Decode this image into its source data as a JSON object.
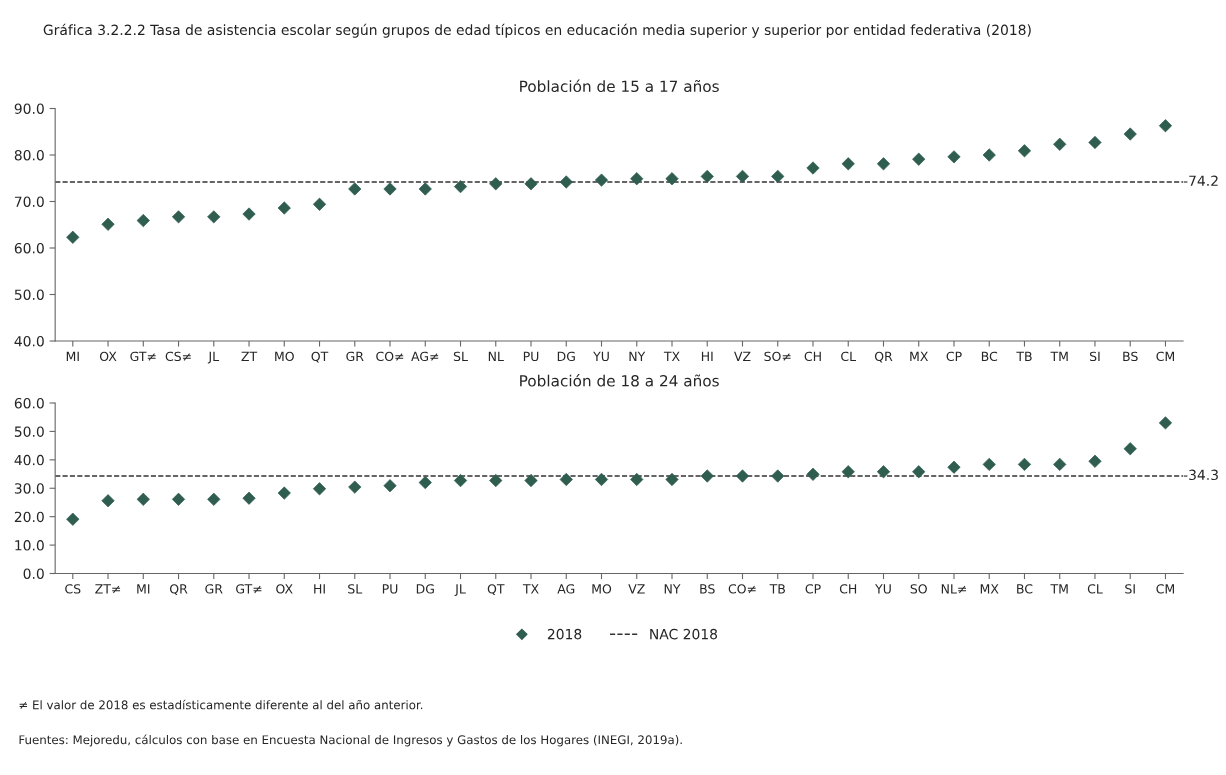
{
  "chart_data": [
    {
      "type": "scatter",
      "title": "Gráfica 3.2.2.2 Tasa de asistencia escolar según grupos de edad típicos en educación media superior y superior por entidad federativa (2018)",
      "subtitle": "Población de 15 a 17 años",
      "categories": [
        "MI",
        "OX",
        "GT≠",
        "CS≠",
        "JL",
        "ZT",
        "MO",
        "QT",
        "GR",
        "CO≠",
        "AG≠",
        "SL",
        "NL",
        "PU",
        "DG",
        "YU",
        "NY",
        "TX",
        "HI",
        "VZ",
        "SO≠",
        "CH",
        "CL",
        "QR",
        "MX",
        "CP",
        "BC",
        "TB",
        "TM",
        "SI",
        "BS",
        "CM"
      ],
      "series": [
        {
          "name": "2018",
          "color": "#2f5d4f",
          "values": [
            62.3,
            65.1,
            65.9,
            66.7,
            66.7,
            67.3,
            68.6,
            69.4,
            72.7,
            72.7,
            72.7,
            73.2,
            73.8,
            73.8,
            74.2,
            74.6,
            74.9,
            74.9,
            75.4,
            75.4,
            75.4,
            77.2,
            78.1,
            78.1,
            79.1,
            79.6,
            80.0,
            80.9,
            82.3,
            82.7,
            84.5,
            86.3
          ]
        }
      ],
      "ref_lines": [
        {
          "axis": "y",
          "value": 74.2,
          "label": "NAC 2018",
          "color": "#333333",
          "line_style": "dashed"
        }
      ],
      "annotations": [
        "-74.2"
      ],
      "ylim": [
        40,
        90
      ],
      "yticks": [
        {
          "value": 40,
          "label": "40.0"
        },
        {
          "value": 50,
          "label": "50.0"
        },
        {
          "value": 60,
          "label": "60.0"
        },
        {
          "value": 70,
          "label": "70.0"
        },
        {
          "value": 80,
          "label": "80.0"
        },
        {
          "value": 90,
          "label": "90.0"
        }
      ],
      "marker": "diamond",
      "grid": false,
      "legend": "bottom"
    },
    {
      "type": "scatter",
      "subtitle": "Población de 18 a 24 años",
      "categories": [
        "CS",
        "ZT≠",
        "MI",
        "QR",
        "GR",
        "GT≠",
        "OX",
        "HI",
        "SL",
        "PU",
        "DG",
        "JL",
        "QT",
        "TX",
        "AG",
        "MO",
        "VZ",
        "NY",
        "BS",
        "CO≠",
        "TB",
        "CP",
        "CH",
        "YU",
        "SO",
        "NL≠",
        "MX",
        "BC",
        "TM",
        "CL",
        "SI",
        "CM"
      ],
      "series": [
        {
          "name": "2018",
          "color": "#2f5d4f",
          "values": [
            19.1,
            25.6,
            26.1,
            26.1,
            26.1,
            26.5,
            28.3,
            29.8,
            30.4,
            30.9,
            32.0,
            32.7,
            32.7,
            32.7,
            33.1,
            33.1,
            33.1,
            33.1,
            34.3,
            34.3,
            34.3,
            34.9,
            35.8,
            35.8,
            35.8,
            37.4,
            38.4,
            38.4,
            38.4,
            39.5,
            43.9,
            53.0
          ]
        }
      ],
      "ref_lines": [
        {
          "axis": "y",
          "value": 34.3,
          "color": "#333333",
          "line_style": "dashed"
        }
      ],
      "ylim": [
        0,
        60
      ],
      "yticks": [
        {
          "value": 0,
          "label": "0.0"
        },
        {
          "value": 10,
          "label": "10.0"
        },
        {
          "value": 20,
          "label": "20.0"
        },
        {
          "value": 30,
          "label": "30.0"
        },
        {
          "value": 40,
          "label": "40.0"
        },
        {
          "value": 50,
          "label": "50.0"
        },
        {
          "value": 60,
          "label": "60.0"
        }
      ],
      "marker": "diamond",
      "grid": false,
      "annotations": [
        "-34.3",
        "≠ El valor de 2018 es estadísticamente diferente al del año anterior.",
        "Fuentes: Mejoredu, cálculos con base en Encuesta Nacional de Ingresos y Gastos de los Hogares (INEGI, 2019a)."
      ]
    }
  ]
}
